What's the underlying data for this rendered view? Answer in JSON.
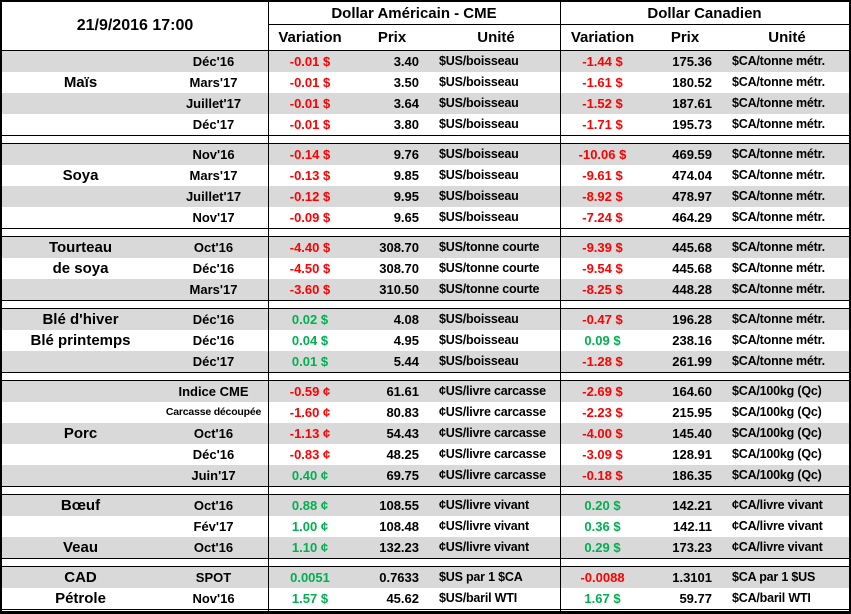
{
  "report": {
    "datetime": "21/9/2016 17:00"
  },
  "columns": {
    "usd_group": "Dollar Américain - CME",
    "cad_group": "Dollar Canadien",
    "subcolumns": [
      "Variation",
      "Prix",
      "Unité"
    ]
  },
  "colors": {
    "positive": "#00B050",
    "negative": "#FF0000",
    "stripe": "#D9D9D9",
    "border": "#000000"
  },
  "sections": [
    {
      "id": "mais",
      "commodity": "Maïs",
      "rows": [
        {
          "label": "",
          "contract": "Déc'16",
          "usd": {
            "variation": "-0.01 $",
            "trend": "neg",
            "price": "3.40",
            "unit": "$US/boisseau"
          },
          "cad": {
            "variation": "-1.44 $",
            "trend": "neg",
            "price": "175.36",
            "unit": "$CA/tonne métr."
          }
        },
        {
          "label": "Maïs",
          "contract": "Mars'17",
          "usd": {
            "variation": "-0.01 $",
            "trend": "neg",
            "price": "3.50",
            "unit": "$US/boisseau"
          },
          "cad": {
            "variation": "-1.61 $",
            "trend": "neg",
            "price": "180.52",
            "unit": "$CA/tonne métr."
          }
        },
        {
          "label": "",
          "contract": "Juillet'17",
          "usd": {
            "variation": "-0.01 $",
            "trend": "neg",
            "price": "3.64",
            "unit": "$US/boisseau"
          },
          "cad": {
            "variation": "-1.52 $",
            "trend": "neg",
            "price": "187.61",
            "unit": "$CA/tonne métr."
          }
        },
        {
          "label": "",
          "contract": "Déc'17",
          "usd": {
            "variation": "-0.01 $",
            "trend": "neg",
            "price": "3.80",
            "unit": "$US/boisseau"
          },
          "cad": {
            "variation": "-1.71 $",
            "trend": "neg",
            "price": "195.73",
            "unit": "$CA/tonne métr."
          }
        }
      ]
    },
    {
      "id": "soya",
      "commodity": "Soya",
      "rows": [
        {
          "label": "",
          "contract": "Nov'16",
          "usd": {
            "variation": "-0.14 $",
            "trend": "neg",
            "price": "9.76",
            "unit": "$US/boisseau"
          },
          "cad": {
            "variation": "-10.06 $",
            "trend": "neg",
            "price": "469.59",
            "unit": "$CA/tonne métr."
          }
        },
        {
          "label": "Soya",
          "contract": "Mars'17",
          "usd": {
            "variation": "-0.13 $",
            "trend": "neg",
            "price": "9.85",
            "unit": "$US/boisseau"
          },
          "cad": {
            "variation": "-9.61 $",
            "trend": "neg",
            "price": "474.04",
            "unit": "$CA/tonne métr."
          }
        },
        {
          "label": "",
          "contract": "Juillet'17",
          "usd": {
            "variation": "-0.12 $",
            "trend": "neg",
            "price": "9.95",
            "unit": "$US/boisseau"
          },
          "cad": {
            "variation": "-8.92 $",
            "trend": "neg",
            "price": "478.97",
            "unit": "$CA/tonne métr."
          }
        },
        {
          "label": "",
          "contract": "Nov'17",
          "usd": {
            "variation": "-0.09 $",
            "trend": "neg",
            "price": "9.65",
            "unit": "$US/boisseau"
          },
          "cad": {
            "variation": "-7.24 $",
            "trend": "neg",
            "price": "464.29",
            "unit": "$CA/tonne métr."
          }
        }
      ]
    },
    {
      "id": "tourteau-de-soya",
      "commodity": "Tourteau de soya",
      "rows": [
        {
          "label": "Tourteau",
          "contract": "Oct'16",
          "usd": {
            "variation": "-4.40 $",
            "trend": "neg",
            "price": "308.70",
            "unit": "$US/tonne courte"
          },
          "cad": {
            "variation": "-9.39 $",
            "trend": "neg",
            "price": "445.68",
            "unit": "$CA/tonne métr."
          }
        },
        {
          "label": "de soya",
          "contract": "Déc'16",
          "usd": {
            "variation": "-4.50 $",
            "trend": "neg",
            "price": "308.70",
            "unit": "$US/tonne courte"
          },
          "cad": {
            "variation": "-9.54 $",
            "trend": "neg",
            "price": "445.68",
            "unit": "$CA/tonne métr."
          }
        },
        {
          "label": "",
          "contract": "Mars'17",
          "usd": {
            "variation": "-3.60 $",
            "trend": "neg",
            "price": "310.50",
            "unit": "$US/tonne courte"
          },
          "cad": {
            "variation": "-8.25 $",
            "trend": "neg",
            "price": "448.28",
            "unit": "$CA/tonne métr."
          }
        }
      ]
    },
    {
      "id": "ble",
      "commodity": "Blé d'hiver / Blé printemps",
      "rows": [
        {
          "label": "Blé d'hiver",
          "contract": "Déc'16",
          "usd": {
            "variation": "0.02 $",
            "trend": "pos",
            "price": "4.08",
            "unit": "$US/boisseau"
          },
          "cad": {
            "variation": "-0.47 $",
            "trend": "neg",
            "price": "196.28",
            "unit": "$CA/tonne métr."
          }
        },
        {
          "label": "Blé printemps",
          "contract": "Déc'16",
          "usd": {
            "variation": "0.04 $",
            "trend": "pos",
            "price": "4.95",
            "unit": "$US/boisseau"
          },
          "cad": {
            "variation": "0.09 $",
            "trend": "pos",
            "price": "238.16",
            "unit": "$CA/tonne métr."
          }
        },
        {
          "label": "",
          "contract": "Déc'17",
          "usd": {
            "variation": "0.01 $",
            "trend": "pos",
            "price": "5.44",
            "unit": "$US/boisseau"
          },
          "cad": {
            "variation": "-1.28 $",
            "trend": "neg",
            "price": "261.99",
            "unit": "$CA/tonne métr."
          }
        }
      ]
    },
    {
      "id": "porc",
      "commodity": "Porc",
      "rows": [
        {
          "label": "",
          "contract": "Indice CME",
          "usd": {
            "variation": "-0.59 ¢",
            "trend": "neg",
            "price": "61.61",
            "unit": "¢US/livre carcasse"
          },
          "cad": {
            "variation": "-2.69 $",
            "trend": "neg",
            "price": "164.60",
            "unit": "$CA/100kg (Qc)"
          }
        },
        {
          "label": "",
          "contract": "Carcasse découpée",
          "small": true,
          "usd": {
            "variation": "-1.60 ¢",
            "trend": "neg",
            "price": "80.83",
            "unit": "¢US/livre carcasse"
          },
          "cad": {
            "variation": "-2.23 $",
            "trend": "neg",
            "price": "215.95",
            "unit": "$CA/100kg (Qc)"
          }
        },
        {
          "label": "Porc",
          "contract": "Oct'16",
          "usd": {
            "variation": "-1.13 ¢",
            "trend": "neg",
            "price": "54.43",
            "unit": "¢US/livre carcasse"
          },
          "cad": {
            "variation": "-4.00 $",
            "trend": "neg",
            "price": "145.40",
            "unit": "$CA/100kg (Qc)"
          }
        },
        {
          "label": "",
          "contract": "Déc'16",
          "usd": {
            "variation": "-0.83 ¢",
            "trend": "neg",
            "price": "48.25",
            "unit": "¢US/livre carcasse"
          },
          "cad": {
            "variation": "-3.09 $",
            "trend": "neg",
            "price": "128.91",
            "unit": "$CA/100kg (Qc)"
          }
        },
        {
          "label": "",
          "contract": "Juin'17",
          "usd": {
            "variation": "0.40 ¢",
            "trend": "pos",
            "price": "69.75",
            "unit": "¢US/livre carcasse"
          },
          "cad": {
            "variation": "-0.18 $",
            "trend": "neg",
            "price": "186.35",
            "unit": "$CA/100kg (Qc)"
          }
        }
      ]
    },
    {
      "id": "boeuf-veau",
      "commodity": "Bœuf / Veau",
      "rows": [
        {
          "label": "Bœuf",
          "contract": "Oct'16",
          "usd": {
            "variation": "0.88 ¢",
            "trend": "pos",
            "price": "108.55",
            "unit": "¢US/livre vivant"
          },
          "cad": {
            "variation": "0.20 $",
            "trend": "pos",
            "price": "142.21",
            "unit": "¢CA/livre vivant"
          }
        },
        {
          "label": "",
          "contract": "Fév'17",
          "usd": {
            "variation": "1.00 ¢",
            "trend": "pos",
            "price": "108.48",
            "unit": "¢US/livre vivant"
          },
          "cad": {
            "variation": "0.36 $",
            "trend": "pos",
            "price": "142.11",
            "unit": "¢CA/livre vivant"
          }
        },
        {
          "label": "Veau",
          "contract": "Oct'16",
          "usd": {
            "variation": "1.10 ¢",
            "trend": "pos",
            "price": "132.23",
            "unit": "¢US/livre vivant"
          },
          "cad": {
            "variation": "0.29 $",
            "trend": "pos",
            "price": "173.23",
            "unit": "¢CA/livre vivant"
          }
        }
      ]
    },
    {
      "id": "cad-petrole",
      "commodity": "CAD / Pétrole",
      "rows": [
        {
          "label": "CAD",
          "contract": "SPOT",
          "usd": {
            "variation": "0.0051",
            "trend": "pos",
            "price": "0.7633",
            "unit": "$US par 1 $CA"
          },
          "cad": {
            "variation": "-0.0088",
            "trend": "neg",
            "price": "1.3101",
            "unit": "$CA par 1 $US"
          }
        },
        {
          "label": "Pétrole",
          "contract": "Nov'16",
          "usd": {
            "variation": "1.57 $",
            "trend": "pos",
            "price": "45.62",
            "unit": "$US/baril WTI"
          },
          "cad": {
            "variation": "1.67 $",
            "trend": "pos",
            "price": "59.77",
            "unit": "$CA/baril WTI"
          }
        }
      ]
    }
  ]
}
